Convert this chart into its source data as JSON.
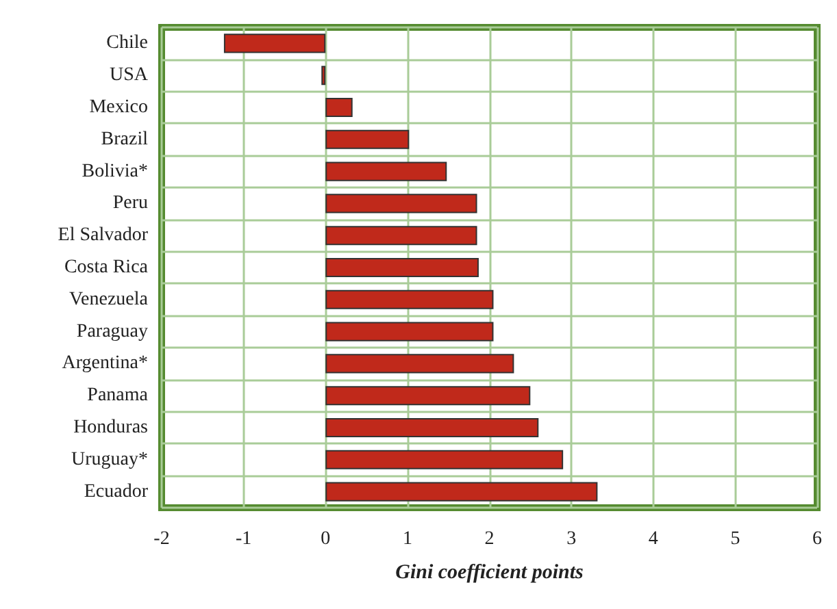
{
  "chart_data": {
    "type": "bar",
    "orientation": "horizontal",
    "xlabel": "Gini coefficient points",
    "categories": [
      "Chile",
      "USA",
      "Mexico",
      "Brazil",
      "Bolivia*",
      "Peru",
      "El Salvador",
      "Costa Rica",
      "Venezuela",
      "Paraguay",
      "Argentina*",
      "Panama",
      "Honduras",
      "Uruguay*",
      "Ecuador"
    ],
    "values": [
      -1.24,
      -0.05,
      0.33,
      1.02,
      1.48,
      1.85,
      1.85,
      1.87,
      2.05,
      2.05,
      2.3,
      2.5,
      2.6,
      2.9,
      3.32
    ],
    "color": "#c0291b",
    "xlim": [
      -2,
      6
    ],
    "xticks": [
      -2,
      -1,
      0,
      1,
      2,
      3,
      4,
      5,
      6
    ],
    "grid": true
  }
}
